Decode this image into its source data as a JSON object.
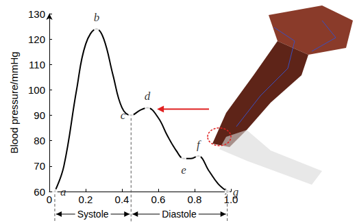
{
  "chart_data": {
    "type": "line",
    "ylabel": "Blood pressure/mmHg",
    "x": [
      0.03,
      0.08,
      0.15,
      0.2,
      0.26,
      0.3,
      0.35,
      0.4,
      0.45,
      0.5,
      0.54,
      0.6,
      0.65,
      0.7,
      0.74,
      0.78,
      0.82,
      0.88,
      0.93,
      0.98
    ],
    "values": [
      60,
      70,
      100,
      118,
      124,
      120,
      106,
      93,
      90,
      92,
      93,
      89,
      82,
      76,
      73,
      73,
      74,
      68,
      63,
      60
    ],
    "color": "#000000",
    "xlim": [
      0,
      1
    ],
    "xticks": [
      0,
      0.2,
      0.4,
      0.6,
      0.8,
      {
        "value": 1,
        "label": "1.0"
      }
    ],
    "ylim": [
      60,
      130
    ],
    "yticks": [
      60,
      70,
      80,
      90,
      100,
      110,
      120,
      130
    ],
    "grid": false,
    "annotations": [
      {
        "text": "a",
        "x": 0.03,
        "y": 60
      },
      {
        "text": "b",
        "x": 0.26,
        "y": 124
      },
      {
        "text": "c",
        "x": 0.45,
        "y": 90
      },
      {
        "text": "d",
        "x": 0.54,
        "y": 93
      },
      {
        "text": "e",
        "x": 0.74,
        "y": 73
      },
      {
        "text": "f",
        "x": 0.82,
        "y": 74
      },
      {
        "text": "g",
        "x": 0.98,
        "y": 60
      }
    ],
    "phases": [
      {
        "text": "Systole",
        "start": 0.03,
        "end": 0.45
      },
      {
        "text": "Diastole",
        "start": 0.45,
        "end": 0.98
      }
    ]
  }
}
